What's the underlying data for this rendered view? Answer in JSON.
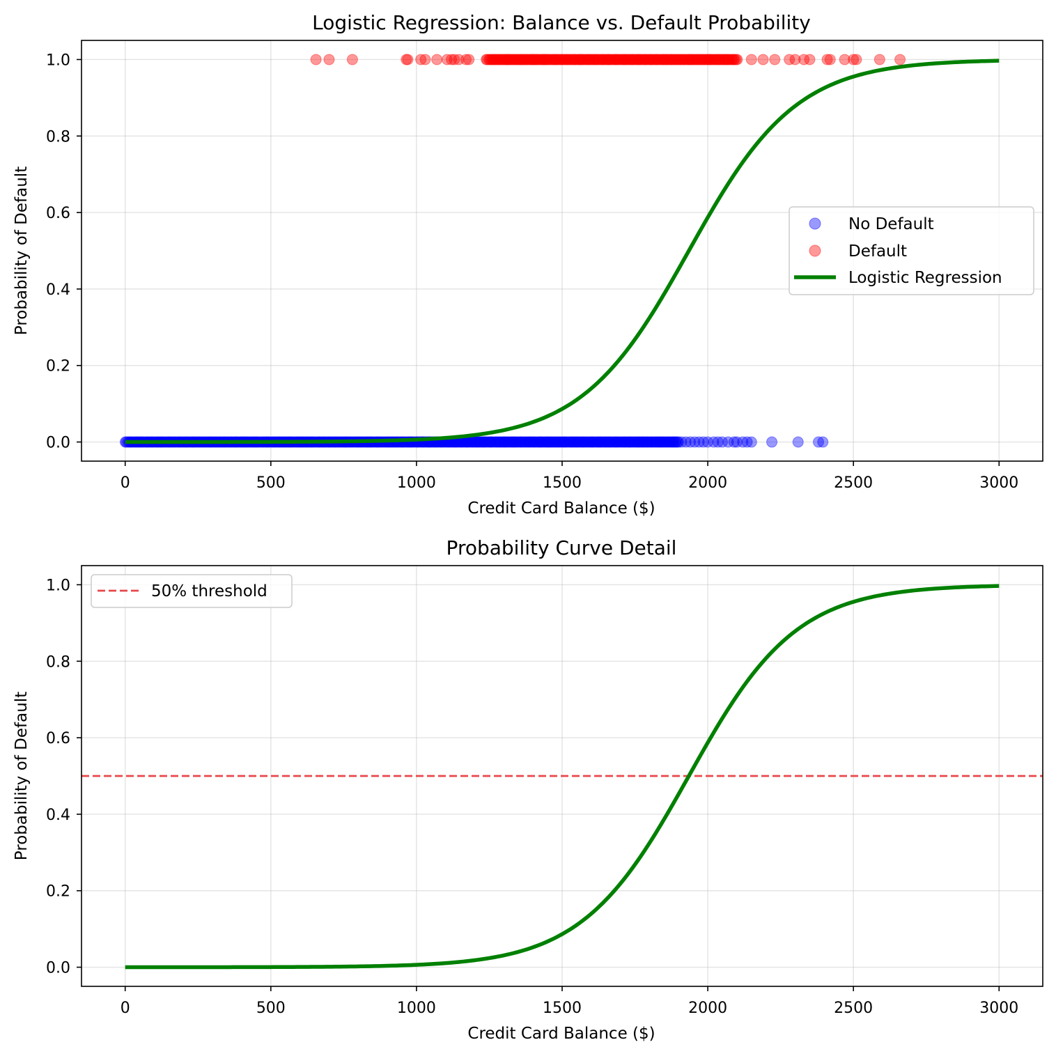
{
  "chart_data": [
    {
      "type": "scatter+line",
      "title": "Logistic Regression: Balance vs. Default Probability",
      "xlabel": "Credit Card Balance ($)",
      "ylabel": "Probability of Default",
      "xlim": [
        -150,
        3150
      ],
      "ylim": [
        -0.05,
        1.05
      ],
      "xticks": [
        0,
        500,
        1000,
        1500,
        2000,
        2500,
        3000
      ],
      "yticks": [
        0.0,
        0.2,
        0.4,
        0.6,
        0.8,
        1.0
      ],
      "ytick_labels": [
        "0.0",
        "0.2",
        "0.4",
        "0.6",
        "0.8",
        "1.0"
      ],
      "grid": true,
      "legend_position": "center-right",
      "series": [
        {
          "name": "No Default",
          "type": "scatter",
          "color": "#0000ff",
          "y": 0,
          "x_dense_range": [
            0,
            1900
          ],
          "x": [
            1910,
            1925,
            1940,
            1955,
            1970,
            1985,
            2000,
            2020,
            2035,
            2050,
            2070,
            2090,
            2100,
            2120,
            2135,
            2150,
            2220,
            2310,
            2380,
            2395
          ]
        },
        {
          "name": "Default",
          "type": "scatter",
          "color": "#ff0000",
          "y": 1,
          "x_dense_range": [
            1240,
            2100
          ],
          "x": [
            655,
            700,
            780,
            965,
            970,
            1015,
            1030,
            1070,
            1105,
            1120,
            1130,
            1145,
            1170,
            1180,
            1310,
            1360,
            1400,
            1440,
            2150,
            2190,
            2230,
            2280,
            2300,
            2330,
            2350,
            2410,
            2420,
            2470,
            2500,
            2510,
            2590,
            2660
          ]
        },
        {
          "name": "Logistic Regression",
          "type": "line",
          "color": "#008000",
          "x_range": [
            0,
            3000
          ],
          "function": "1 / (1 + exp(-0.00542 * (x - 1935)))"
        }
      ]
    },
    {
      "type": "line",
      "title": "Probability Curve Detail",
      "xlabel": "Credit Card Balance ($)",
      "ylabel": "Probability of Default",
      "xlim": [
        -150,
        3150
      ],
      "ylim": [
        -0.05,
        1.05
      ],
      "xticks": [
        0,
        500,
        1000,
        1500,
        2000,
        2500,
        3000
      ],
      "yticks": [
        0.0,
        0.2,
        0.4,
        0.6,
        0.8,
        1.0
      ],
      "ytick_labels": [
        "0.0",
        "0.2",
        "0.4",
        "0.6",
        "0.8",
        "1.0"
      ],
      "grid": true,
      "legend_position": "top-left",
      "series": [
        {
          "name": "50% threshold",
          "type": "hline",
          "y": 0.5,
          "color": "#e8474b",
          "style": "dashed"
        },
        {
          "name": "",
          "type": "line",
          "color": "#008000",
          "x_range": [
            0,
            3000
          ],
          "function": "1 / (1 + exp(-0.00542 * (x - 1935)))"
        }
      ]
    }
  ]
}
